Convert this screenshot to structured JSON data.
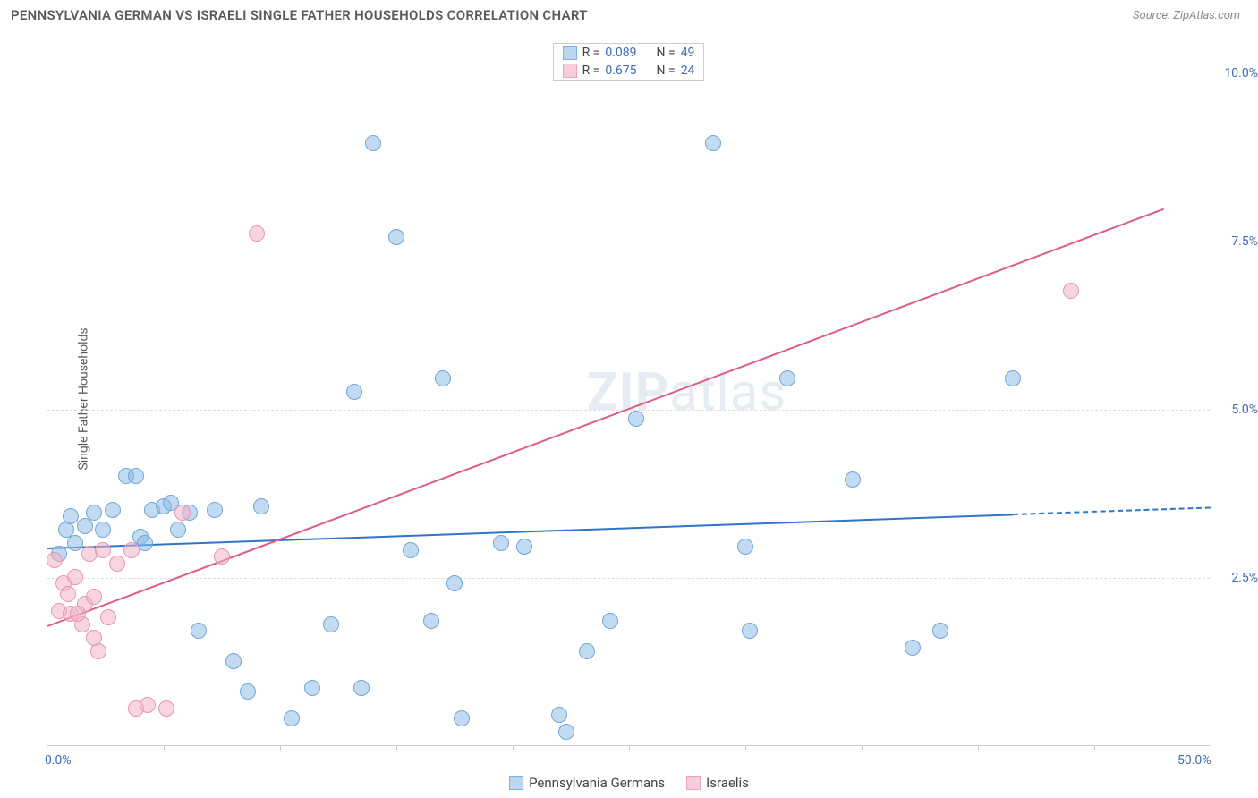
{
  "title": "PENNSYLVANIA GERMAN VS ISRAELI SINGLE FATHER HOUSEHOLDS CORRELATION CHART",
  "source": "Source: ZipAtlas.com",
  "watermark": {
    "bold": "ZIP",
    "rest": "atlas"
  },
  "ylabel": "Single Father Households",
  "chart": {
    "type": "scatter",
    "background_color": "#ffffff",
    "grid_color": "#dddddd",
    "axis_color": "#cccccc",
    "text_color": "#5a5a5a",
    "value_color": "#3b6db5",
    "xlim": [
      0,
      50
    ],
    "ylim": [
      0,
      10.5
    ],
    "xtick_labels": [
      {
        "x": 0,
        "label": "0.0%"
      },
      {
        "x": 50,
        "label": "50.0%"
      }
    ],
    "xtick_positions": [
      5,
      10,
      15,
      20,
      25,
      30,
      35,
      40,
      45,
      50
    ],
    "ytick_labels": [
      {
        "y": 2.5,
        "label": "2.5%"
      },
      {
        "y": 5.0,
        "label": "5.0%"
      },
      {
        "y": 7.5,
        "label": "7.5%"
      },
      {
        "y": 10.0,
        "label": "10.0%"
      }
    ],
    "ygrid": [
      2.5,
      5.0,
      7.5
    ],
    "point_radius": 9,
    "series": [
      {
        "name": "Pennsylvania Germans",
        "color_fill": "rgba(144,188,232,0.55)",
        "color_stroke": "#6fa8d8",
        "swatch_fill": "#bcd6ef",
        "swatch_stroke": "#7fb1db",
        "trend_color": "#2f74c8",
        "r": "0.089",
        "n": "49",
        "trend": {
          "x0": 0,
          "y0": 2.95,
          "x1": 41.5,
          "y1": 3.45,
          "dashed_to_x": 50,
          "dashed_to_y": 3.55
        },
        "points": [
          {
            "x": 0.5,
            "y": 2.85
          },
          {
            "x": 0.8,
            "y": 3.2
          },
          {
            "x": 1.0,
            "y": 3.4
          },
          {
            "x": 1.2,
            "y": 3.0
          },
          {
            "x": 1.6,
            "y": 3.25
          },
          {
            "x": 2.0,
            "y": 3.45
          },
          {
            "x": 2.4,
            "y": 3.2
          },
          {
            "x": 2.8,
            "y": 3.5
          },
          {
            "x": 3.4,
            "y": 4.0
          },
          {
            "x": 4.0,
            "y": 3.1
          },
          {
            "x": 4.2,
            "y": 3.0
          },
          {
            "x": 4.5,
            "y": 3.5
          },
          {
            "x": 5.0,
            "y": 3.55
          },
          {
            "x": 5.3,
            "y": 3.6
          },
          {
            "x": 5.6,
            "y": 3.2
          },
          {
            "x": 6.1,
            "y": 3.45
          },
          {
            "x": 6.5,
            "y": 1.7
          },
          {
            "x": 7.2,
            "y": 3.5
          },
          {
            "x": 8.0,
            "y": 1.25
          },
          {
            "x": 8.6,
            "y": 0.8
          },
          {
            "x": 9.2,
            "y": 3.55
          },
          {
            "x": 10.5,
            "y": 0.4
          },
          {
            "x": 11.4,
            "y": 0.85
          },
          {
            "x": 12.2,
            "y": 1.8
          },
          {
            "x": 13.2,
            "y": 5.25
          },
          {
            "x": 13.5,
            "y": 0.85
          },
          {
            "x": 14.0,
            "y": 8.95
          },
          {
            "x": 15.0,
            "y": 7.55
          },
          {
            "x": 15.6,
            "y": 2.9
          },
          {
            "x": 16.5,
            "y": 1.85
          },
          {
            "x": 17.0,
            "y": 5.45
          },
          {
            "x": 17.5,
            "y": 2.4
          },
          {
            "x": 17.8,
            "y": 0.4
          },
          {
            "x": 19.5,
            "y": 3.0
          },
          {
            "x": 20.5,
            "y": 2.95
          },
          {
            "x": 22.0,
            "y": 0.45
          },
          {
            "x": 22.3,
            "y": 0.2
          },
          {
            "x": 23.2,
            "y": 1.4
          },
          {
            "x": 24.2,
            "y": 1.85
          },
          {
            "x": 25.3,
            "y": 4.85
          },
          {
            "x": 28.6,
            "y": 8.95
          },
          {
            "x": 30.0,
            "y": 2.95
          },
          {
            "x": 30.2,
            "y": 1.7
          },
          {
            "x": 31.8,
            "y": 5.45
          },
          {
            "x": 34.6,
            "y": 3.95
          },
          {
            "x": 37.2,
            "y": 1.45
          },
          {
            "x": 38.4,
            "y": 1.7
          },
          {
            "x": 41.5,
            "y": 5.45
          },
          {
            "x": 3.8,
            "y": 4.0
          }
        ]
      },
      {
        "name": "Israelis",
        "color_fill": "rgba(244,178,198,0.55)",
        "color_stroke": "#e597b0",
        "swatch_fill": "#f6cdd9",
        "swatch_stroke": "#e9a6bb",
        "trend_color": "#e05a8a",
        "r": "0.675",
        "n": "24",
        "trend": {
          "x0": 0,
          "y0": 1.8,
          "x1": 48,
          "y1": 8.0
        },
        "points": [
          {
            "x": 0.3,
            "y": 2.75
          },
          {
            "x": 0.5,
            "y": 2.0
          },
          {
            "x": 0.7,
            "y": 2.4
          },
          {
            "x": 0.9,
            "y": 2.25
          },
          {
            "x": 1.0,
            "y": 1.95
          },
          {
            "x": 1.2,
            "y": 2.5
          },
          {
            "x": 1.5,
            "y": 1.8
          },
          {
            "x": 1.6,
            "y": 2.1
          },
          {
            "x": 1.8,
            "y": 2.85
          },
          {
            "x": 2.0,
            "y": 2.2
          },
          {
            "x": 2.2,
            "y": 1.4
          },
          {
            "x": 2.4,
            "y": 2.9
          },
          {
            "x": 2.6,
            "y": 1.9
          },
          {
            "x": 3.0,
            "y": 2.7
          },
          {
            "x": 3.6,
            "y": 2.9
          },
          {
            "x": 3.8,
            "y": 0.55
          },
          {
            "x": 4.3,
            "y": 0.6
          },
          {
            "x": 5.1,
            "y": 0.55
          },
          {
            "x": 5.8,
            "y": 3.45
          },
          {
            "x": 7.5,
            "y": 2.8
          },
          {
            "x": 9.0,
            "y": 7.6
          },
          {
            "x": 44.0,
            "y": 6.75
          },
          {
            "x": 2.0,
            "y": 1.6
          },
          {
            "x": 1.3,
            "y": 1.95
          }
        ]
      }
    ]
  },
  "legend_top_labels": {
    "r": "R =",
    "n": "N ="
  },
  "legend_bottom": [
    {
      "series_idx": 0
    },
    {
      "series_idx": 1
    }
  ]
}
